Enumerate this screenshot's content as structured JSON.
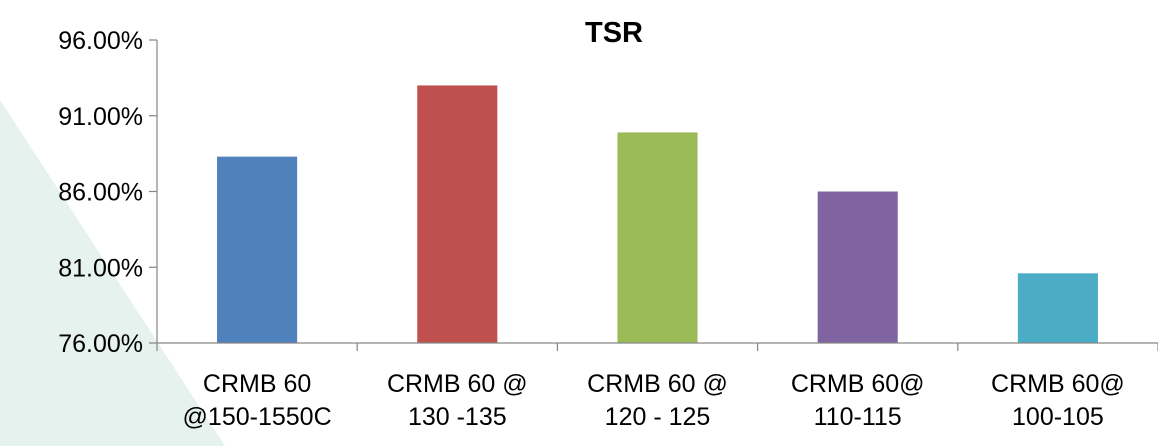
{
  "chart_data": {
    "type": "bar",
    "title": "TSR",
    "xlabel": "",
    "ylabel": "",
    "categories": [
      [
        "CRMB 60",
        "@150-1550C"
      ],
      [
        "CRMB 60 @",
        "130 -135"
      ],
      [
        "CRMB 60 @",
        "120 - 125"
      ],
      [
        "CRMB 60@",
        "110-115"
      ],
      [
        "CRMB 60@",
        "100-105"
      ]
    ],
    "values": [
      88.3,
      93.0,
      89.9,
      86.0,
      80.6
    ],
    "value_unit": "%",
    "colors": [
      "#4f81bd",
      "#c0504d",
      "#9bbb59",
      "#8064a2",
      "#4bacc6"
    ],
    "ylim": [
      76,
      96
    ],
    "yticks": [
      76,
      81,
      86,
      91,
      96
    ],
    "ytick_labels": [
      "76.00%",
      "81.00%",
      "86.00%",
      "91.00%",
      "96.00%"
    ],
    "grid": false,
    "legend": "none"
  }
}
